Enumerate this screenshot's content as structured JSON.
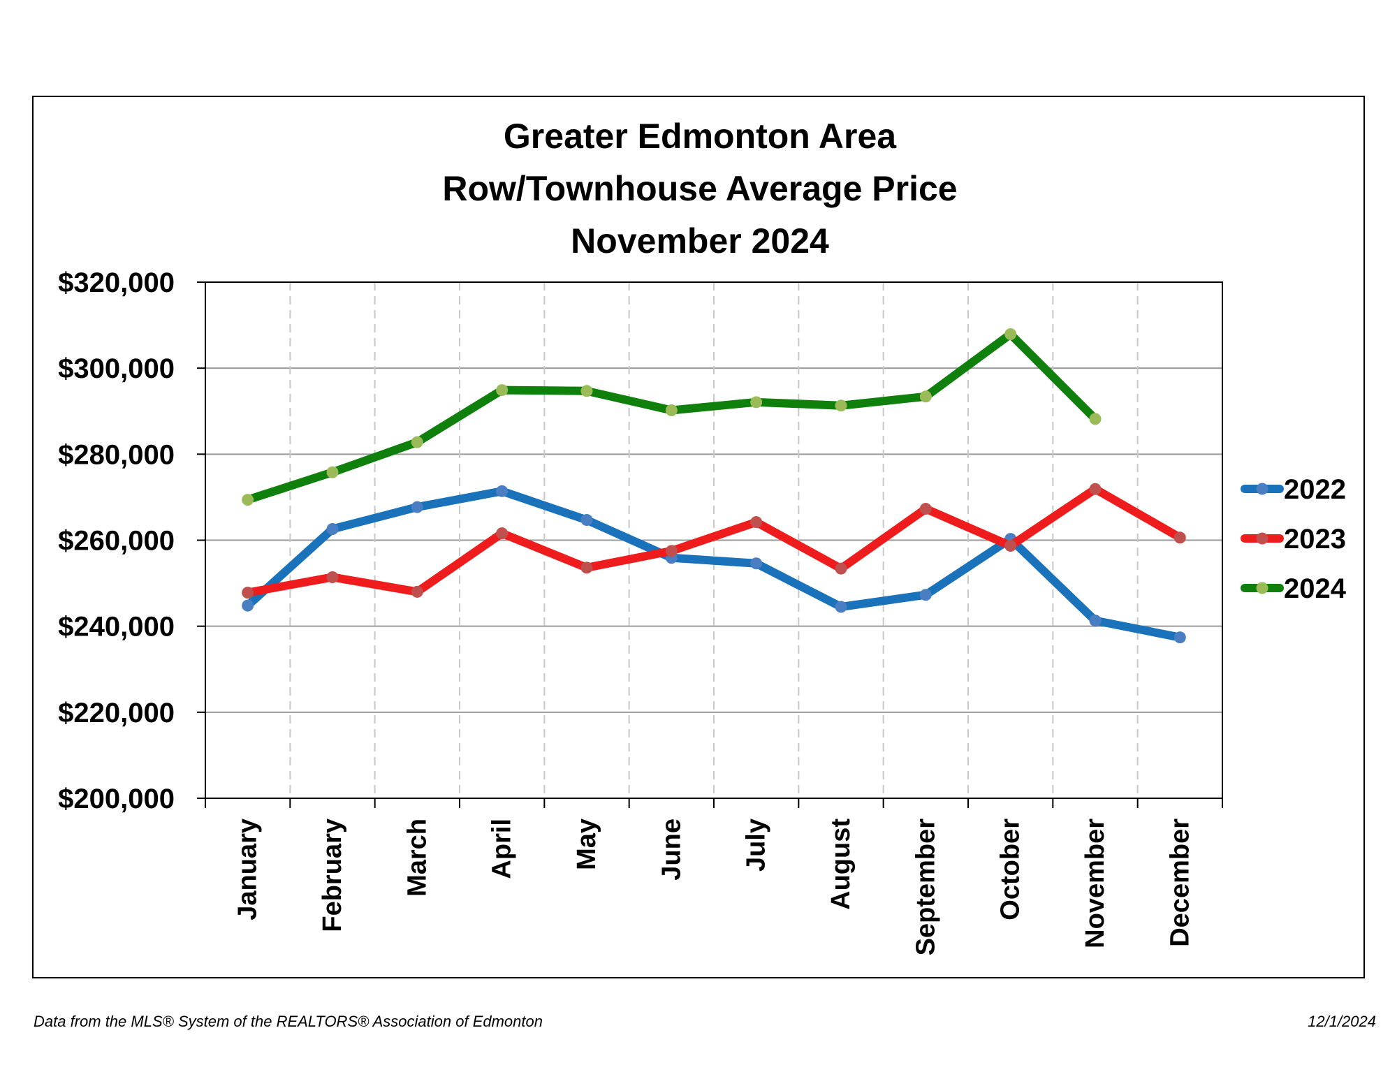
{
  "chart_data": {
    "type": "line",
    "title_lines": [
      "Greater Edmonton Area",
      "Row/Townhouse Average Price",
      "November 2024"
    ],
    "categories": [
      "January",
      "February",
      "March",
      "April",
      "May",
      "June",
      "July",
      "August",
      "September",
      "October",
      "November",
      "December"
    ],
    "y_tick_labels": [
      "$200,000",
      "$220,000",
      "$240,000",
      "$260,000",
      "$280,000",
      "$300,000",
      "$320,000"
    ],
    "ylim": [
      200000,
      320000
    ],
    "y_step": 20000,
    "grid": {
      "horizontal": "solid",
      "vertical": "dashed"
    },
    "legend_position": "right",
    "series": [
      {
        "name": "2022",
        "color": "#1a72bb",
        "marker": "#4a7ec2",
        "values": [
          244800,
          262600,
          267700,
          271400,
          264700,
          255900,
          254600,
          244500,
          247300,
          260300,
          241300,
          237400
        ]
      },
      {
        "name": "2023",
        "color": "#ee1c1c",
        "marker": "#c0504d",
        "values": [
          247800,
          251400,
          248000,
          261600,
          253600,
          257500,
          264200,
          253400,
          267300,
          258700,
          271900,
          260600
        ]
      },
      {
        "name": "2024",
        "color": "#10800d",
        "marker": "#9bbb59",
        "values": [
          269400,
          275800,
          282800,
          294900,
          294700,
          290200,
          292100,
          291300,
          293400,
          307900,
          288200,
          null
        ]
      }
    ]
  },
  "footer": {
    "source": "Data from the MLS® System of the REALTORS® Association of Edmonton",
    "date": "12/1/2024"
  }
}
